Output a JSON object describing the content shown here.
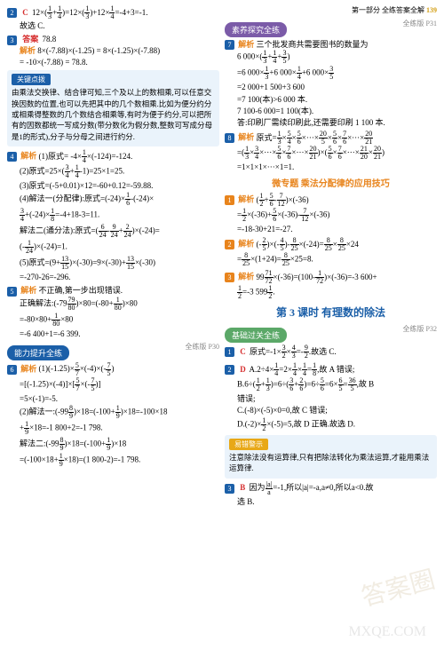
{
  "header": {
    "part": "第一部分",
    "title": "全练答案全解",
    "page": "139"
  },
  "colors": {
    "blue": "#1b5fa8",
    "orange": "#e8841c",
    "red": "#d62e2e",
    "tipbg": "#eaf3fb"
  },
  "left": {
    "q2": {
      "num": "2",
      "ans": "C",
      "line1": "12×(1/3+1/4)=12×(1/3)+12×1/4=-4+3=-1.",
      "line2": "故选 C."
    },
    "q3": {
      "num": "3",
      "ans_label": "答案",
      "ans_val": "78.8",
      "jiexi": "解析",
      "l1": "8×(-7.88)×(-1.25) = 8×(-1.25)×(-7.88)",
      "l2": "= -10×(-7.88) = 78.8."
    },
    "tip1": {
      "title": "关键点拨",
      "body": "由乘法交换律、结合律可知,三个及以上的数相乘,可以任意交换因数的位置,也可以先把其中的几个数相乘.比如为便分约分或相乘得整数的几个数结合相乘等,有时为便于约分,可以把所有的因数都统一写成分数(带分数化为假分数,整数可写成分母是1的形式),分子与分母之间进行约分."
    },
    "q4": {
      "num": "4",
      "jiexi": "解析",
      "l1": "(1)原式= -4×1/4×(-124)=-124.",
      "l2": "(2)原式=25×(3/4+1/4-1)=25×1=25.",
      "l3": "(3)原式=(-5+0.01)×12=-60+0.12=-59.88.",
      "l4": "(4)解法一(分配律):原式=(-24)×1/6-(-24)×",
      "l5": "3/4+(-24)×1/8=-4+18-3=11.",
      "l6": "解法二(通分法):原式=(6/24-9/24+2/24)×(-24)=",
      "l7": "(-1/24)×(-24)=1.",
      "l8": "(5)原式=(9+13/15)×(-30)=9×(-30)+13/15×(-30)",
      "l9": "=-270-26=-296."
    },
    "q5": {
      "num": "5",
      "jiexi": "解析",
      "head": "不正确,第一步出现错误.",
      "l1": "正确解法:(-79 79/80)×80=(-80+1/80)×80",
      "l2": "=-80×80+1/80×80",
      "l3": "=-6 400+1=-6 399."
    },
    "sec_ability": {
      "title": "能力提升全练",
      "ref": "全练版 P30"
    },
    "q6": {
      "num": "6",
      "jiexi": "解析",
      "l1": "(1)(-1.25)×5/7×(-4)×(-7/5)",
      "l2": "=[(-1.25)×(-4)]×[5/7×(-7/5)]",
      "l3": "=5×(-1)=-5.",
      "l4": "(2)解法一:(-99 8/9)×18=(-100+1/9)×18=-100×18",
      "l5": "+1/9×18=-1 800+2=-1 798.",
      "l6": "解法二:(-99 8/9)×18=(-100+1/9)×18",
      "l7": "=(-100×18+1/9×18)=(-1 800-2)=-1 798."
    }
  },
  "right": {
    "sec_suyang": {
      "title": "素养探究全练",
      "ref": "全练版 P31"
    },
    "q7": {
      "num": "7",
      "jiexi": "解析",
      "head": "三个批发商共需要图书的数量为",
      "l1": "6 000×(1/3+1/4+3/5)",
      "l2": "=6 000×1/3+6 000×1/4+6 000×3/5",
      "l3": "=2 000+1 500+3 600",
      "l4": "=7 100(本)>6 000 本.",
      "l5": "7 100-6 000=1 100(本).",
      "l6": "答:印刷厂需续印刷此,还需要印刷 1 100 本."
    },
    "q8": {
      "num": "8",
      "jiexi": "解析",
      "l1": "原式=1/3×5/4×5/6×···×20/5×5/6×7/6×···×20/21",
      "l2": "=(1/3×3/4×···×5/6×7/6×···×20/21)×(5/6×7/6×···×21/20×20/21)",
      "l3": "=1×1×1×···×1=1."
    },
    "micro": {
      "title": "微专题  乘法分配律的应用技巧"
    },
    "m1": {
      "num": "1",
      "jiexi": "解析",
      "l1": "(1/2+5/6-7/12)×(-36)",
      "l2": "=1/2×(-36)+5/6×(-36)-7/12×(-36)",
      "l3": "=-18-30+21=-27."
    },
    "m2": {
      "num": "2",
      "jiexi": "解析",
      "l1": "(-2/5)×(-4/5)-8/25×(-24)=8/25×8/25×24",
      "l2": "=8/25×(1+24)=8/25×25=8."
    },
    "m3": {
      "num": "3",
      "jiexi": "解析",
      "l1": "99 71/72×(-36)=(100-1/72)×(-36)=-3 600+",
      "l2": "1/2=-3 599 1/2."
    },
    "lesson": {
      "title": "第 3 课时  有理数的除法"
    },
    "sec_basic": {
      "title": "基础过关全练",
      "ref": "全练版 P32"
    },
    "b1": {
      "num": "1",
      "ans": "C",
      "l1": "原式=-1×3/2×4/3=-9/2.故选 C."
    },
    "b2": {
      "num": "2",
      "ans": "D",
      "l1": "A.2÷4×1/4=2×1/4×1/4=1/8,故 A 错误;",
      "l2": "B.6÷(1/2+1/3)=6÷(3/6+2/6)=6÷5/6=6×6/5=36/5,故 B",
      "l3": "错误;",
      "l4": "C.(-8)×(-5)×0=0,故 C 错误;",
      "l5": "D.(-2)×1/2×(-5)=5,故 D 正确.故选 D."
    },
    "tip2": {
      "title": "易错警示",
      "body": "注意除法没有运算律,只有把除法转化为乘法运算,才能用乘法运算律."
    },
    "b3": {
      "num": "3",
      "ans": "B",
      "l1": "因为|a|/a=-1,所以|a|=-a,a≠0,所以a<0.故",
      "l2": "选 B."
    }
  }
}
